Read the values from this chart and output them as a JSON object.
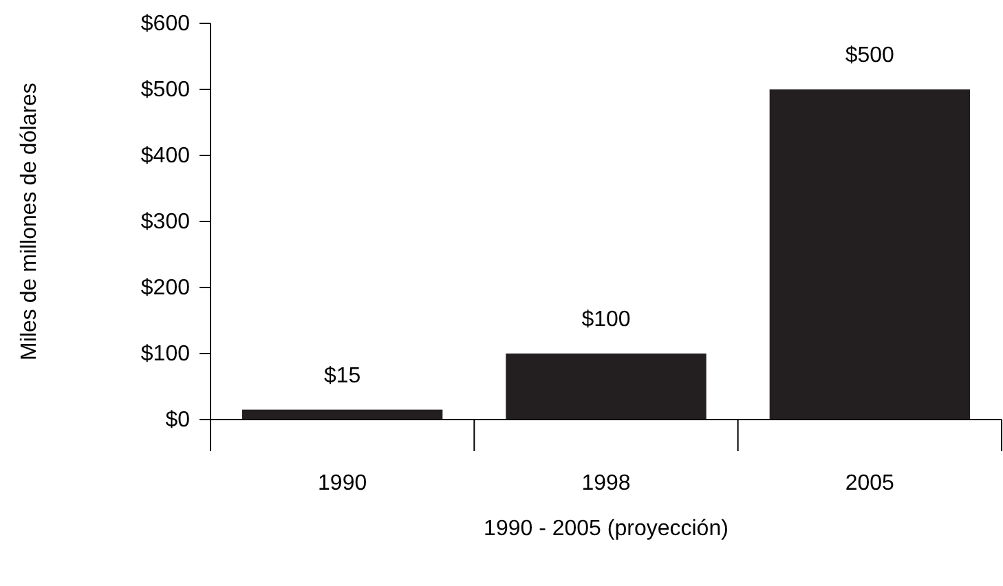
{
  "chart_data": {
    "type": "bar",
    "xlabel": "1990 - 2005 (proyección)",
    "ylabel": "Miles de millones de dólares",
    "categories": [
      "1990",
      "1998",
      "2005"
    ],
    "values": [
      15,
      100,
      500
    ],
    "color": "#231f20",
    "value_labels": [
      "$15",
      "$100",
      "$500"
    ],
    "ylim": [
      0,
      600
    ],
    "yticks": [
      {
        "value": 0,
        "label": "$0"
      },
      {
        "value": 100,
        "label": "$100"
      },
      {
        "value": 200,
        "label": "$200"
      },
      {
        "value": 300,
        "label": "$300"
      },
      {
        "value": 400,
        "label": "$400"
      },
      {
        "value": 500,
        "label": "$500"
      },
      {
        "value": 600,
        "label": "$600"
      }
    ],
    "grid": false
  }
}
